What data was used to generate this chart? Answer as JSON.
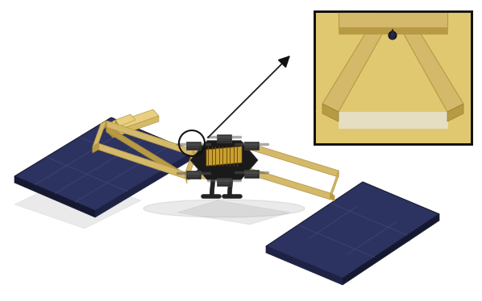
{
  "figsize": [
    5.98,
    3.74
  ],
  "dpi": 100,
  "bg_color": "#ffffff",
  "panel_blue": "#2d3360",
  "panel_blue_dark": "#1e2244",
  "panel_blue_light": "#3d4470",
  "panel_blue_edge": "#151830",
  "frame_tan": "#d4b96a",
  "frame_tan_dark": "#b89a45",
  "frame_tan_light": "#e8d080",
  "frame_tan_shadow": "#9a7e30",
  "drone_dark": "#222222",
  "drone_mid": "#444444",
  "drone_light": "#666666",
  "inset_bg": "#e0c870",
  "inset_bg2": "#c8aa50",
  "inset_border": "#111111",
  "arrow_color": "#111111",
  "circle_color": "#111111",
  "shadow_color": "#888888",
  "white": "#f5f5f0"
}
